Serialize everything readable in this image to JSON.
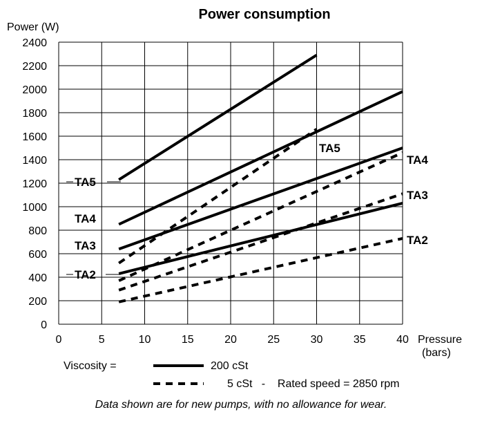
{
  "chart_data": {
    "type": "line",
    "title": "Power consumption",
    "ylabel": "Power  (W)",
    "xlabel": "Pressure",
    "xlabel_unit": "(bars)",
    "xlim": [
      0,
      40
    ],
    "ylim": [
      0,
      2400
    ],
    "x_ticks": [
      "0",
      "5",
      "10",
      "15",
      "20",
      "25",
      "30",
      "35",
      "40"
    ],
    "y_ticks": [
      "0",
      "200",
      "400",
      "600",
      "800",
      "1000",
      "1200",
      "1400",
      "1600",
      "1800",
      "2000",
      "2200",
      "2400"
    ],
    "grid": true,
    "series": [
      {
        "label": "TA5",
        "viscosity": "200 cSt",
        "style": "solid",
        "x": [
          7,
          30
        ],
        "y": [
          1230,
          2290
        ]
      },
      {
        "label": "TA4",
        "viscosity": "200 cSt",
        "style": "solid",
        "x": [
          7,
          40
        ],
        "y": [
          850,
          1980
        ]
      },
      {
        "label": "TA3",
        "viscosity": "200 cSt",
        "style": "solid",
        "x": [
          7,
          40
        ],
        "y": [
          640,
          1500
        ]
      },
      {
        "label": "TA2",
        "viscosity": "200 cSt",
        "style": "solid",
        "x": [
          7,
          40
        ],
        "y": [
          430,
          1030
        ]
      },
      {
        "label": "TA5",
        "viscosity": "5 cSt",
        "style": "dashed",
        "x": [
          7,
          30
        ],
        "y": [
          520,
          1660
        ]
      },
      {
        "label": "TA4",
        "viscosity": "5 cSt",
        "style": "dashed",
        "x": [
          7,
          40
        ],
        "y": [
          370,
          1460
        ]
      },
      {
        "label": "TA3",
        "viscosity": "5 cSt",
        "style": "dashed",
        "x": [
          7,
          40
        ],
        "y": [
          290,
          1110
        ]
      },
      {
        "label": "TA2",
        "viscosity": "5 cSt",
        "style": "dashed",
        "x": [
          7,
          40
        ],
        "y": [
          190,
          730
        ]
      }
    ],
    "left_labels": [
      "TA5",
      "TA4",
      "TA3",
      "TA2"
    ],
    "right_labels": [
      "TA5",
      "TA4",
      "TA3",
      "TA2"
    ],
    "legend": {
      "prefix": "Viscosity   =",
      "solid": "200 cSt",
      "dashed": "5 cSt   -    Rated speed = 2850 rpm"
    }
  },
  "footnote": "Data shown are for new pumps, with no allowance for wear."
}
